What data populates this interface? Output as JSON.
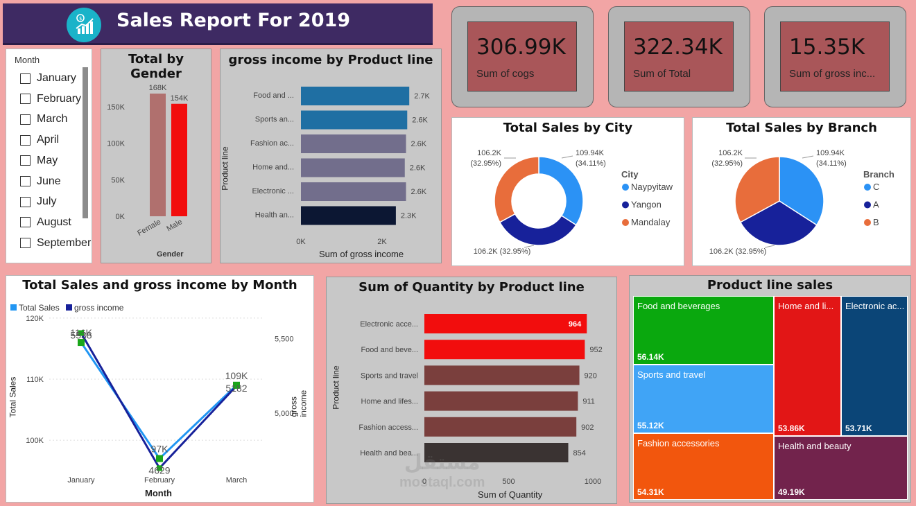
{
  "header": {
    "title": "Sales Report For 2019",
    "icon": "chart-growth-icon"
  },
  "kpis": [
    {
      "value": "306.99K",
      "label": "Sum of cogs"
    },
    {
      "value": "322.34K",
      "label": "Sum of Total"
    },
    {
      "value": "15.35K",
      "label": "Sum of gross inc..."
    }
  ],
  "slicer": {
    "title": "Month",
    "items": [
      "January",
      "February",
      "March",
      "April",
      "May",
      "June",
      "July",
      "August",
      "September"
    ]
  },
  "colors": {
    "accent_red": "#f20d0d",
    "kpi_bg": "#a95659",
    "header_bg": "#3e2a63",
    "page_bg": "#f2a5a5"
  },
  "chart_data": [
    {
      "id": "gender",
      "type": "bar",
      "title": "Total by Gender",
      "xlabel": "Gender",
      "categories": [
        "Female",
        "Male"
      ],
      "values": [
        168,
        154
      ],
      "data_labels": [
        "168K",
        "154K"
      ],
      "ylim": [
        0,
        168
      ],
      "yticks": [
        "0K",
        "50K",
        "100K",
        "150K"
      ],
      "colors": [
        "#b0706e",
        "#f20d0d"
      ]
    },
    {
      "id": "gross-income-product",
      "type": "bar",
      "orientation": "horizontal",
      "title": "gross income by Product line",
      "xlabel": "Sum of gross income",
      "ylabel": "Product line",
      "categories": [
        "Food and ...",
        "Sports an...",
        "Fashion ac...",
        "Home and...",
        "Electronic ...",
        "Health an..."
      ],
      "values": [
        2.67,
        2.62,
        2.59,
        2.56,
        2.59,
        2.34
      ],
      "data_labels": [
        "2.7K",
        "2.6K",
        "2.6K",
        "2.6K",
        "2.6K",
        "2.3K"
      ],
      "xticks": [
        "0K",
        "2K"
      ],
      "colors": [
        "#1f6fa3",
        "#1f6fa3",
        "#726e8c",
        "#726e8c",
        "#726e8c",
        "#0c1733"
      ]
    },
    {
      "id": "city",
      "type": "pie",
      "variant": "donut",
      "title": "Total Sales by City",
      "legend_title": "City",
      "categories": [
        "Naypyitaw",
        "Yangon",
        "Mandalay"
      ],
      "values": [
        109.94,
        106.2,
        106.2
      ],
      "data_labels": [
        "109.94K (34.11%)",
        "106.2K (32.95%)",
        "106.2K (32.95%)"
      ],
      "colors": [
        "#2b92f5",
        "#17219a",
        "#e86d3b"
      ],
      "legend": "right"
    },
    {
      "id": "branch",
      "type": "pie",
      "title": "Total Sales by Branch",
      "legend_title": "Branch",
      "categories": [
        "C",
        "A",
        "B"
      ],
      "values": [
        109.94,
        106.2,
        106.2
      ],
      "data_labels": [
        "109.94K (34.11%)",
        "106.2K (32.95%)",
        "106.2K (32.95%)"
      ],
      "colors": [
        "#2b92f5",
        "#17219a",
        "#e86d3b"
      ],
      "legend": "right"
    },
    {
      "id": "monthly",
      "type": "line",
      "title": "Total Sales and gross income by Month",
      "xlabel": "Month",
      "ylabel": "Total Sales",
      "y2label": "gross income",
      "categories": [
        "January",
        "February",
        "March"
      ],
      "series": [
        {
          "name": "Total Sales",
          "values": [
            116,
            97,
            109
          ],
          "data_labels": [
            "116K",
            "97K",
            "109K"
          ],
          "color": "#2196f3"
        },
        {
          "name": "gross income",
          "values": [
            5538,
            4629,
            5182
          ],
          "data_labels": [
            "5538",
            "4629",
            "5182"
          ],
          "color": "#17219a"
        }
      ],
      "ylim": [
        94,
        121
      ],
      "y2lim": [
        4570,
        5680
      ],
      "yticks": [
        "100K",
        "110K",
        "120K"
      ],
      "y2ticks": [
        "5,000",
        "5,500"
      ],
      "legend": "top-left"
    },
    {
      "id": "quantity",
      "type": "bar",
      "orientation": "horizontal",
      "title": "Sum of Quantity by Product line",
      "xlabel": "Sum of Quantity",
      "ylabel": "Product line",
      "categories": [
        "Electronic acce...",
        "Food and beve...",
        "Sports and travel",
        "Home and lifes...",
        "Fashion access...",
        "Health and bea..."
      ],
      "values": [
        964,
        952,
        920,
        911,
        902,
        854
      ],
      "data_labels": [
        "964",
        "952",
        "920",
        "911",
        "902",
        "854"
      ],
      "xticks": [
        "0",
        "500",
        "1000"
      ],
      "colors": [
        "#f20d0d",
        "#f20d0d",
        "#7a3f3d",
        "#7a3f3d",
        "#7a3f3d",
        "#3a3332"
      ]
    },
    {
      "id": "treemap",
      "type": "treemap",
      "title": "Product line sales",
      "categories": [
        "Food and beverages",
        "Sports and travel",
        "Fashion accessories",
        "Home and li...",
        "Electronic ac...",
        "Health and beauty"
      ],
      "values": [
        56.14,
        55.12,
        54.31,
        53.86,
        53.71,
        49.19
      ],
      "data_labels": [
        "56.14K",
        "55.12K",
        "54.31K",
        "53.86K",
        "53.71K",
        "49.19K"
      ],
      "colors": [
        "#0aa80e",
        "#40a4f6",
        "#f2560d",
        "#e21616",
        "#0b4577",
        "#72234c"
      ]
    }
  ],
  "watermark": {
    "text": "mostaql.com",
    "arabic": "مستقل"
  }
}
